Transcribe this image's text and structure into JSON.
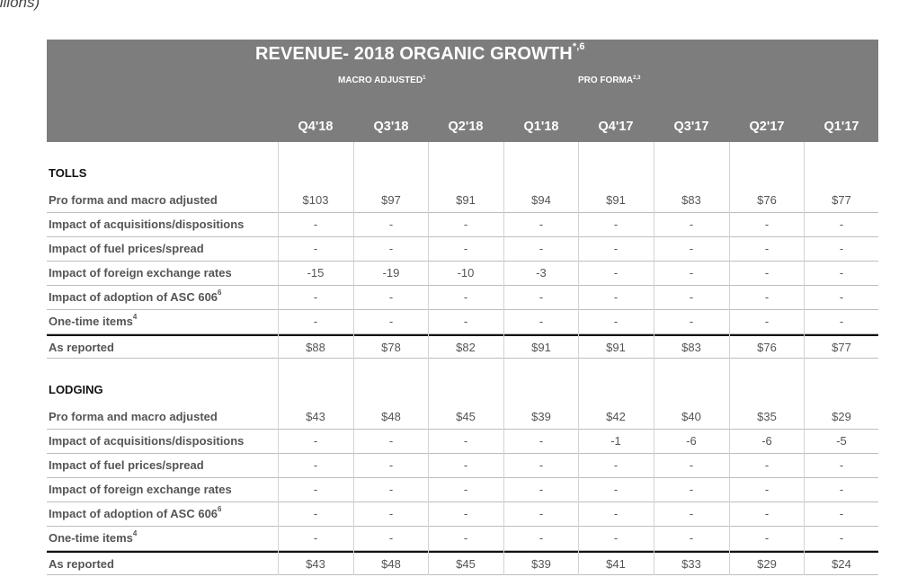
{
  "units_text": "illions)",
  "title": "REVENUE- 2018 ORGANIC GROWTH",
  "title_sup": "*,6",
  "subheaders": {
    "macro": "MACRO ADJUSTED",
    "macro_sup": "1",
    "pro": "PRO FORMA",
    "pro_sup": "2,3"
  },
  "quarters": [
    "Q4'18",
    "Q3'18",
    "Q2'18",
    "Q1'18",
    "Q4'17",
    "Q3'17",
    "Q2'17",
    "Q1'17"
  ],
  "sections": [
    {
      "title": "TOLLS",
      "rows": [
        {
          "label": "Pro forma and macro adjusted",
          "sup": "",
          "values": [
            "$103",
            "$97",
            "$91",
            "$94",
            "$91",
            "$83",
            "$76",
            "$77"
          ]
        },
        {
          "label": "Impact of acquisitions/dispositions",
          "sup": "",
          "values": [
            "-",
            "-",
            "-",
            "-",
            "-",
            "-",
            "-",
            "-"
          ]
        },
        {
          "label": "Impact of fuel prices/spread",
          "sup": "",
          "values": [
            "-",
            "-",
            "-",
            "-",
            "-",
            "-",
            "-",
            "-"
          ]
        },
        {
          "label": "Impact of foreign exchange rates",
          "sup": "",
          "values": [
            "-15",
            "-19",
            "-10",
            "-3",
            "-",
            "-",
            "-",
            "-"
          ]
        },
        {
          "label": "Impact of adoption of ASC 606",
          "sup": "6",
          "values": [
            "-",
            "-",
            "-",
            "-",
            "-",
            "-",
            "-",
            "-"
          ]
        },
        {
          "label": "One-time items",
          "sup": "4",
          "values": [
            "-",
            "-",
            "-",
            "-",
            "-",
            "-",
            "-",
            "-"
          ]
        },
        {
          "label": "As reported",
          "sup": "",
          "values": [
            "$88",
            "$78",
            "$82",
            "$91",
            "$91",
            "$83",
            "$76",
            "$77"
          ]
        }
      ]
    },
    {
      "title": "LODGING",
      "rows": [
        {
          "label": "Pro forma and macro adjusted",
          "sup": "",
          "values": [
            "$43",
            "$48",
            "$45",
            "$39",
            "$42",
            "$40",
            "$35",
            "$29"
          ]
        },
        {
          "label": "Impact of acquisitions/dispositions",
          "sup": "",
          "values": [
            "-",
            "-",
            "-",
            "-",
            "-1",
            "-6",
            "-6",
            "-5"
          ]
        },
        {
          "label": "Impact of fuel prices/spread",
          "sup": "",
          "values": [
            "-",
            "-",
            "-",
            "-",
            "-",
            "-",
            "-",
            "-"
          ]
        },
        {
          "label": "Impact of foreign exchange rates",
          "sup": "",
          "values": [
            "-",
            "-",
            "-",
            "-",
            "-",
            "-",
            "-",
            "-"
          ]
        },
        {
          "label": "Impact of adoption of ASC 606",
          "sup": "6",
          "values": [
            "-",
            "-",
            "-",
            "-",
            "-",
            "-",
            "-",
            "-"
          ]
        },
        {
          "label": "One-time items",
          "sup": "4",
          "values": [
            "-",
            "-",
            "-",
            "-",
            "-",
            "-",
            "-",
            "-"
          ]
        },
        {
          "label": "As reported",
          "sup": "",
          "values": [
            "$43",
            "$48",
            "$45",
            "$39",
            "$41",
            "$33",
            "$29",
            "$24"
          ]
        }
      ]
    }
  ]
}
